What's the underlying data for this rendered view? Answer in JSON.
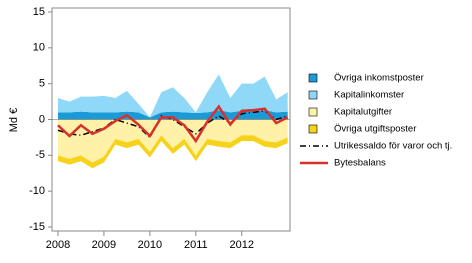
{
  "chart_data": {
    "type": "stacked-area-line",
    "y_label": "Md €",
    "x": [
      2008.0,
      2008.25,
      2008.5,
      2008.75,
      2009.0,
      2009.25,
      2009.5,
      2009.75,
      2010.0,
      2010.25,
      2010.5,
      2010.75,
      2011.0,
      2011.25,
      2011.5,
      2011.75,
      2012.0,
      2012.25,
      2012.5,
      2012.75,
      2013.0
    ],
    "xlim": [
      2007.87,
      2013.05
    ],
    "xticks": [
      2008,
      2009,
      2010,
      2011,
      2012
    ],
    "ylim": [
      -15,
      15
    ],
    "yticks": [
      -15,
      -10,
      -5,
      0,
      5,
      10,
      15
    ],
    "legend": "right",
    "series": [
      {
        "name": "Övriga inkomstposter",
        "kind": "area",
        "color": "#1a9bd7",
        "values": [
          1.0,
          1.0,
          1.1,
          1.0,
          1.0,
          1.0,
          1.1,
          1.0,
          0.3,
          1.0,
          1.1,
          1.0,
          0.9,
          1.0,
          1.3,
          1.0,
          1.2,
          1.1,
          1.3,
          1.0,
          1.1
        ]
      },
      {
        "name": "Kapitalinkomster",
        "kind": "area",
        "color": "#8fd8f8",
        "values": [
          2.0,
          1.5,
          2.1,
          2.2,
          2.3,
          2.0,
          2.9,
          1.2,
          0.0,
          2.8,
          3.4,
          2.0,
          0.1,
          2.8,
          5.0,
          2.0,
          3.8,
          3.9,
          4.7,
          1.8,
          2.7
        ]
      },
      {
        "name": "Kapitalutgifter",
        "kind": "area",
        "color": "#fff2a8",
        "values": [
          -5.0,
          -5.5,
          -5.0,
          -6.0,
          -5.2,
          -2.7,
          -3.2,
          -2.7,
          -4.5,
          -2.2,
          -4.0,
          -2.7,
          -5.0,
          -2.7,
          -3.0,
          -3.2,
          -2.2,
          -2.2,
          -3.0,
          -3.2,
          -2.5
        ]
      },
      {
        "name": "Övriga utgiftsposter",
        "kind": "area",
        "color": "#f7d21b",
        "values": [
          -0.8,
          -0.8,
          -0.8,
          -0.8,
          -0.8,
          -0.8,
          -0.8,
          -0.8,
          -0.8,
          -0.8,
          -0.8,
          -0.8,
          -0.8,
          -0.8,
          -0.8,
          -0.8,
          -0.8,
          -0.8,
          -0.8,
          -0.8,
          -0.8
        ]
      },
      {
        "name": "Utrikessaldo för varor och tj.",
        "kind": "line",
        "dash": "6,3,1,3",
        "color": "#000000",
        "values": [
          -1.5,
          -2.0,
          -2.2,
          -1.7,
          -1.2,
          0.0,
          -0.5,
          -1.0,
          -2.5,
          0.5,
          0.0,
          -1.0,
          -2.0,
          -0.5,
          0.5,
          -0.5,
          0.8,
          1.0,
          1.2,
          0.0,
          0.5
        ]
      },
      {
        "name": "Bytesbalans",
        "kind": "line",
        "color": "#d9302c",
        "values": [
          -0.8,
          -2.3,
          -0.8,
          -2.0,
          -1.3,
          -0.2,
          0.6,
          -0.7,
          -2.3,
          0.3,
          0.3,
          -0.8,
          -3.0,
          -0.3,
          1.8,
          -0.7,
          1.2,
          1.3,
          1.5,
          -0.5,
          0.3
        ]
      }
    ]
  }
}
